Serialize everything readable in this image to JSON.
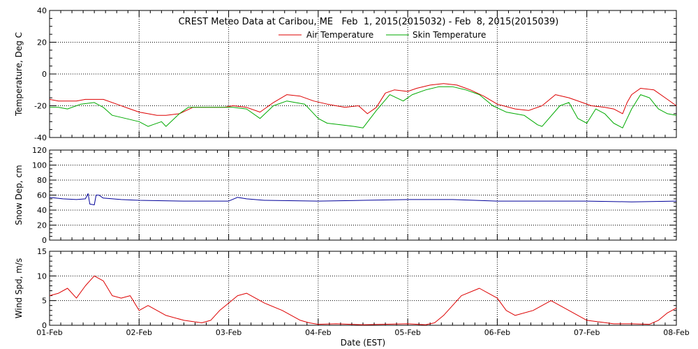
{
  "chart_data": [
    {
      "type": "line",
      "title": "CREST Meteo Data at Caribou, ME   Feb  1, 2015(2015032) - Feb  8, 2015(2015039)",
      "ylabel": "Temperature, Deg C",
      "xlabel": "",
      "ylim": [
        -40,
        40
      ],
      "yticks": [
        -40,
        -20,
        0,
        20,
        40
      ],
      "ytick_labels": [
        "-40",
        "-20",
        "0",
        "20",
        "40"
      ],
      "xlim": [
        0,
        7
      ],
      "grid": true,
      "legend_position": "top-center",
      "series": [
        {
          "name": "Air Temperature",
          "color": "#dd0000",
          "x": [
            0,
            0.1,
            0.3,
            0.4,
            0.5,
            0.6,
            0.75,
            0.9,
            1.0,
            1.1,
            1.2,
            1.3,
            1.45,
            1.6,
            1.8,
            1.95,
            2.05,
            2.2,
            2.35,
            2.5,
            2.65,
            2.8,
            2.95,
            3.1,
            3.3,
            3.45,
            3.55,
            3.65,
            3.75,
            3.85,
            4.0,
            4.1,
            4.25,
            4.4,
            4.55,
            4.7,
            4.85,
            5.0,
            5.2,
            5.35,
            5.5,
            5.65,
            5.8,
            5.95,
            6.05,
            6.2,
            6.3,
            6.4,
            6.45,
            6.5,
            6.6,
            6.75,
            6.9,
            7.0
          ],
          "values": [
            -16,
            -17,
            -17,
            -16,
            -16,
            -16,
            -19,
            -22,
            -24,
            -25,
            -26,
            -26,
            -25,
            -21,
            -21,
            -21,
            -20,
            -21,
            -24,
            -18,
            -13,
            -14,
            -17,
            -19,
            -21,
            -20,
            -25,
            -21,
            -12,
            -10,
            -11,
            -9,
            -7,
            -6,
            -7,
            -10,
            -14,
            -19,
            -22,
            -23,
            -20,
            -13,
            -15,
            -18,
            -20,
            -21,
            -22,
            -25,
            -18,
            -13,
            -9,
            -10,
            -16,
            -20
          ]
        },
        {
          "name": "Skin Temperature",
          "color": "#00aa00",
          "x": [
            0,
            0.1,
            0.2,
            0.35,
            0.5,
            0.6,
            0.7,
            0.85,
            1.0,
            1.1,
            1.15,
            1.25,
            1.3,
            1.45,
            1.55,
            1.8,
            1.95,
            2.05,
            2.2,
            2.35,
            2.5,
            2.65,
            2.85,
            3.0,
            3.1,
            3.25,
            3.4,
            3.5,
            3.65,
            3.8,
            3.95,
            4.05,
            4.2,
            4.35,
            4.5,
            4.65,
            4.8,
            4.95,
            5.1,
            5.3,
            5.45,
            5.5,
            5.7,
            5.8,
            5.9,
            6.0,
            6.1,
            6.2,
            6.3,
            6.4,
            6.5,
            6.6,
            6.7,
            6.8,
            6.9,
            7.0
          ],
          "values": [
            -21,
            -21,
            -22,
            -19,
            -18,
            -21,
            -26,
            -28,
            -30,
            -33,
            -32,
            -30,
            -33,
            -25,
            -21,
            -21,
            -21,
            -21,
            -22,
            -28,
            -20,
            -17,
            -19,
            -28,
            -31,
            -32,
            -33,
            -34,
            -23,
            -13,
            -17,
            -13,
            -10,
            -8,
            -8,
            -10,
            -13,
            -20,
            -24,
            -26,
            -32,
            -33,
            -20,
            -18,
            -28,
            -31,
            -22,
            -25,
            -31,
            -34,
            -22,
            -13,
            -15,
            -22,
            -25,
            -26
          ]
        }
      ]
    },
    {
      "type": "line",
      "title": "",
      "ylabel": "Snow Dep, cm",
      "xlabel": "",
      "ylim": [
        0,
        120
      ],
      "yticks": [
        0,
        20,
        40,
        60,
        80,
        100,
        120
      ],
      "ytick_labels": [
        "0",
        "20",
        "40",
        "60",
        "80",
        "100",
        "120"
      ],
      "xlim": [
        0,
        7
      ],
      "grid": true,
      "series": [
        {
          "name": "",
          "color": "#000099",
          "x": [
            0,
            0.15,
            0.3,
            0.4,
            0.43,
            0.45,
            0.5,
            0.52,
            0.55,
            0.6,
            0.8,
            1.0,
            1.5,
            2.0,
            2.1,
            2.2,
            2.4,
            3.0,
            3.5,
            4.0,
            4.5,
            5.0,
            5.5,
            6.0,
            6.5,
            7.0
          ],
          "values": [
            57,
            55,
            54,
            55,
            62,
            48,
            47,
            60,
            60,
            56,
            54,
            53,
            52,
            52,
            57,
            55,
            53,
            52,
            53,
            54,
            54,
            52,
            52,
            52,
            51,
            52
          ]
        }
      ]
    },
    {
      "type": "line",
      "title": "",
      "ylabel": "Wind Spd, m/s",
      "xlabel": "Date (EST)",
      "ylim": [
        0,
        15
      ],
      "yticks": [
        0,
        5,
        10,
        15
      ],
      "ytick_labels": [
        "0",
        "5",
        "10",
        "15"
      ],
      "xlim": [
        0,
        7
      ],
      "xticks": [
        0,
        1,
        2,
        3,
        4,
        5,
        6,
        7
      ],
      "xtick_labels": [
        "01-Feb",
        "02-Feb",
        "03-Feb",
        "04-Feb",
        "05-Feb",
        "06-Feb",
        "07-Feb",
        "08-Feb"
      ],
      "grid": true,
      "series": [
        {
          "name": "",
          "color": "#dd0000",
          "x": [
            0,
            0.1,
            0.2,
            0.3,
            0.4,
            0.5,
            0.6,
            0.7,
            0.8,
            0.9,
            1.0,
            1.1,
            1.3,
            1.5,
            1.7,
            1.8,
            1.9,
            2.0,
            2.1,
            2.2,
            2.4,
            2.6,
            2.8,
            2.9,
            3.0,
            3.2,
            3.5,
            4.0,
            4.2,
            4.3,
            4.4,
            4.6,
            4.8,
            4.9,
            5.0,
            5.1,
            5.2,
            5.4,
            5.6,
            5.8,
            6.0,
            6.3,
            6.5,
            6.7,
            6.8,
            6.9,
            7.0
          ],
          "values": [
            6,
            6.5,
            7.5,
            5.5,
            8,
            10,
            9,
            6,
            5.5,
            6,
            3,
            4,
            2,
            1,
            0.5,
            1,
            3,
            4.5,
            6,
            6.5,
            4.5,
            3,
            1,
            0.5,
            0.2,
            0.3,
            0.1,
            0.3,
            0.1,
            0.5,
            2,
            6,
            7.5,
            6.5,
            5.5,
            3,
            2,
            3,
            5,
            3,
            1,
            0.3,
            0.3,
            0.2,
            1,
            2.5,
            3.5
          ]
        }
      ]
    }
  ],
  "legend": {
    "air_label": "Air Temperature",
    "skin_label": "Skin Temperature"
  },
  "colors": {
    "air": "#dd0000",
    "skin": "#00aa00",
    "snow": "#000099",
    "wind": "#dd0000"
  }
}
